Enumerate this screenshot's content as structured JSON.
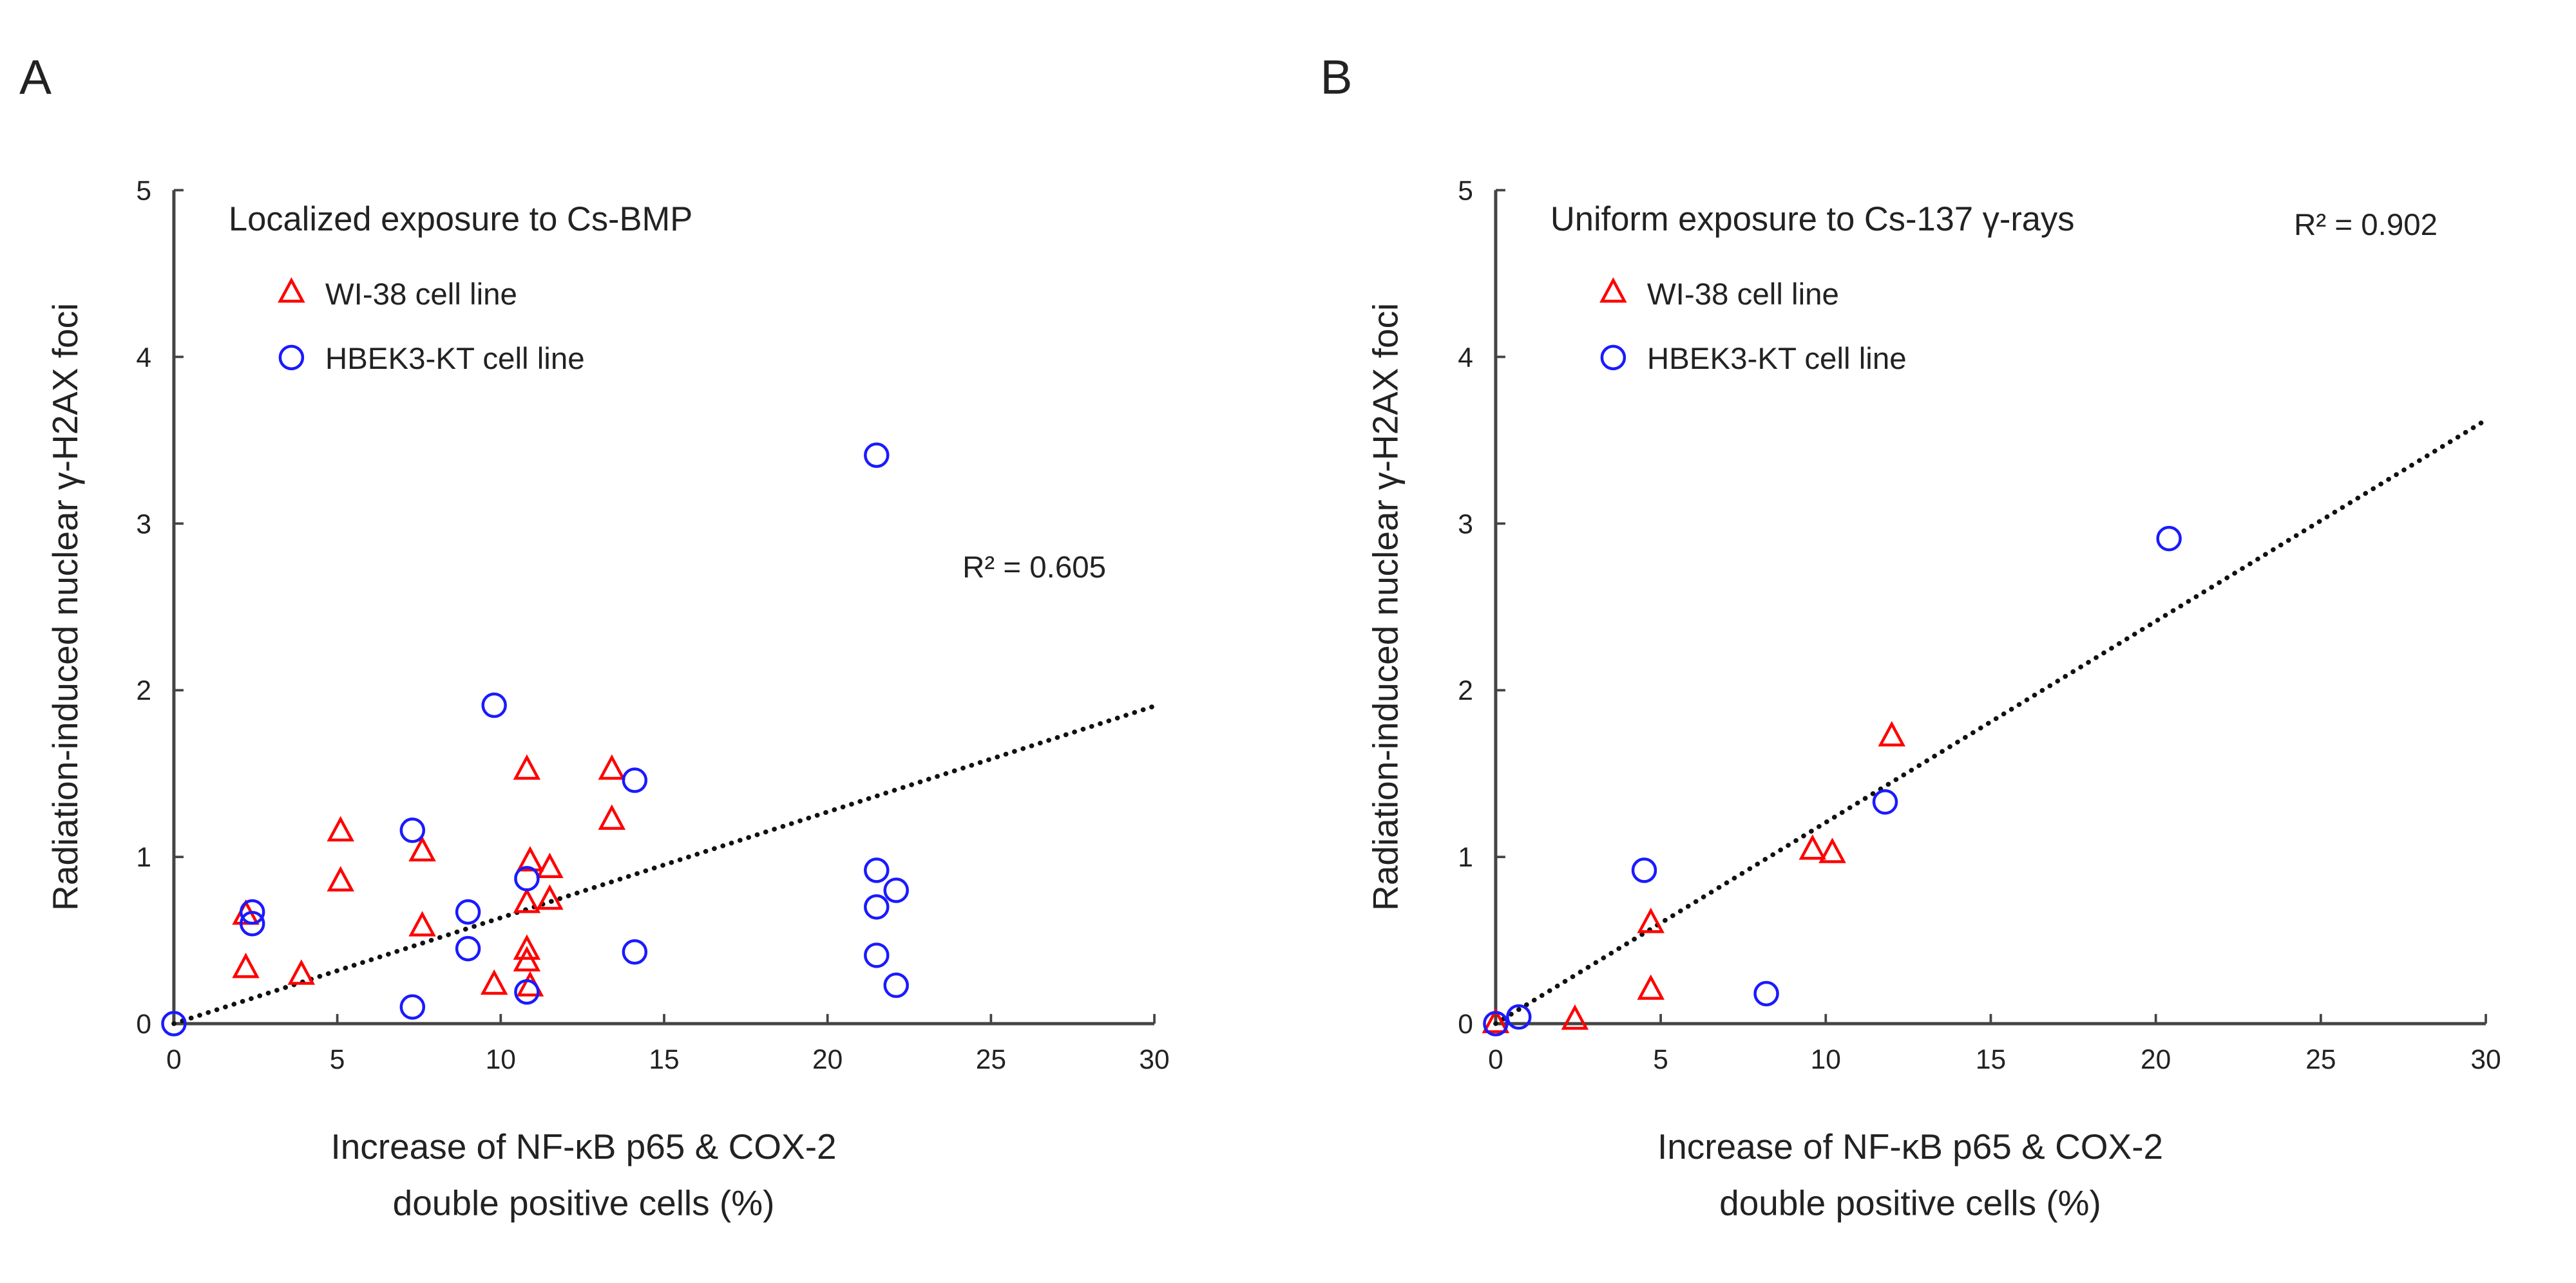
{
  "colors": {
    "wi38": "#ff0000",
    "hbek": "#1a1aff",
    "axis": "#444444",
    "trend": "#111111"
  },
  "chart_data": [
    {
      "type": "scatter",
      "panel_label": "A",
      "title": "Localized exposure to Cs-BMP",
      "ylabel": "Radiation-induced nuclear γ-H2AX foci",
      "xlabel_line1": "Increase of NF-κB p65 & COX-2",
      "xlabel_line2": "double positive cells (%)",
      "xlim": [
        0,
        30
      ],
      "ylim": [
        0,
        5
      ],
      "xticks": [
        "0",
        "5",
        "10",
        "15",
        "20",
        "25",
        "30"
      ],
      "yticks": [
        "0",
        "1",
        "2",
        "3",
        "4",
        "5"
      ],
      "grid": false,
      "legend_position": "top-left",
      "r2_label": "R² = 0.605",
      "trend_slope": 0.0635,
      "series": [
        {
          "name": "WI-38 cell line",
          "marker": "triangle",
          "points": [
            [
              2.2,
              0.65
            ],
            [
              2.2,
              0.33
            ],
            [
              3.9,
              0.29
            ],
            [
              5.1,
              1.15
            ],
            [
              5.1,
              0.85
            ],
            [
              7.6,
              1.03
            ],
            [
              7.6,
              0.58
            ],
            [
              9.8,
              0.23
            ],
            [
              10.8,
              1.52
            ],
            [
              10.9,
              0.97
            ],
            [
              10.8,
              0.72
            ],
            [
              10.8,
              0.44
            ],
            [
              10.8,
              0.37
            ],
            [
              10.9,
              0.22
            ],
            [
              11.5,
              0.93
            ],
            [
              11.5,
              0.74
            ],
            [
              13.4,
              1.52
            ],
            [
              13.4,
              1.22
            ]
          ]
        },
        {
          "name": "HBEK3-KT cell line",
          "marker": "circle",
          "points": [
            [
              0,
              0
            ],
            [
              2.4,
              0.67
            ],
            [
              2.4,
              0.6
            ],
            [
              7.3,
              0.1
            ],
            [
              7.3,
              1.16
            ],
            [
              9.0,
              0.67
            ],
            [
              9.0,
              0.45
            ],
            [
              9.8,
              1.91
            ],
            [
              10.8,
              0.87
            ],
            [
              10.8,
              0.19
            ],
            [
              14.1,
              1.46
            ],
            [
              14.1,
              0.43
            ],
            [
              21.5,
              3.41
            ],
            [
              21.5,
              0.92
            ],
            [
              21.5,
              0.7
            ],
            [
              21.5,
              0.41
            ],
            [
              22.1,
              0.8
            ],
            [
              22.1,
              0.23
            ]
          ]
        }
      ]
    },
    {
      "type": "scatter",
      "panel_label": "B",
      "title": "Uniform exposure to Cs-137 γ-rays",
      "ylabel": "Radiation-induced nuclear γ-H2AX foci",
      "xlabel_line1": "Increase of NF-κB p65 & COX-2",
      "xlabel_line2": "double positive cells (%)",
      "xlim": [
        0,
        30
      ],
      "ylim": [
        0,
        5
      ],
      "xticks": [
        "0",
        "5",
        "10",
        "15",
        "20",
        "25",
        "30"
      ],
      "yticks": [
        "0",
        "1",
        "2",
        "3",
        "4",
        "5"
      ],
      "grid": false,
      "legend_position": "top-left",
      "r2_label": "R² = 0.902",
      "trend_slope": 0.1207,
      "series": [
        {
          "name": "WI-38 cell line",
          "marker": "triangle",
          "points": [
            [
              0,
              0
            ],
            [
              2.4,
              0.02
            ],
            [
              4.7,
              0.2
            ],
            [
              4.7,
              0.6
            ],
            [
              9.6,
              1.04
            ],
            [
              10.2,
              1.02
            ],
            [
              12.0,
              1.72
            ]
          ]
        },
        {
          "name": "HBEK3-KT cell line",
          "marker": "circle",
          "points": [
            [
              0,
              0
            ],
            [
              0.7,
              0.04
            ],
            [
              4.5,
              0.92
            ],
            [
              8.2,
              0.18
            ],
            [
              11.8,
              1.33
            ],
            [
              20.4,
              2.91
            ]
          ]
        }
      ]
    }
  ]
}
